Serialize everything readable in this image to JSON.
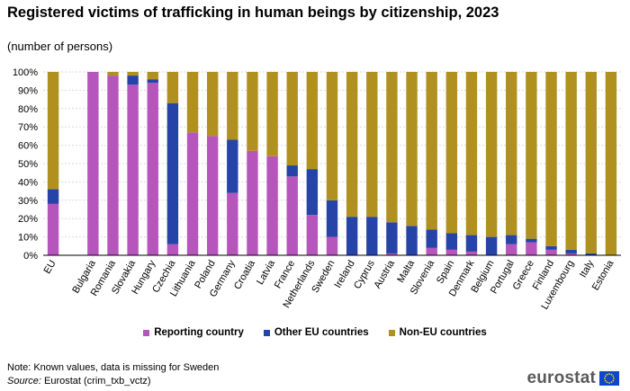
{
  "title": "Registered victims of trafficking in human beings by citizenship, 2023",
  "subtitle": "(number  of persons)",
  "note": "Note: Known values, data is missing for Sweden",
  "source_label": "Source:",
  "source_text": "Eurostat (crim_txb_vctz)",
  "logo_text": "eurostat",
  "colors": {
    "reporting": "#b656bd",
    "other_eu": "#2644a7",
    "non_eu": "#b09120",
    "grid": "#d9d9d9",
    "axis": "#000000"
  },
  "chart_data": {
    "type": "bar",
    "stacked": true,
    "title": "Registered victims of trafficking in human beings by citizenship, 2023",
    "xlabel": "",
    "ylabel": "",
    "ylim": [
      0,
      100
    ],
    "yticks": [
      "0%",
      "10%",
      "20%",
      "30%",
      "40%",
      "50%",
      "60%",
      "70%",
      "80%",
      "90%",
      "100%"
    ],
    "categories": [
      "EU",
      "",
      "Bulgaria",
      "Romania",
      "Slovakia",
      "Hungary",
      "Czechia",
      "Lithuania",
      "Poland",
      "Germany",
      "Croatia",
      "Latvia",
      "France",
      "Netherlands",
      "Sweden",
      "Ireland",
      "Cyprus",
      "Austria",
      "Malta",
      "Slovenia",
      "Spain",
      "Denmark",
      "Belgium",
      "Portugal",
      "Greece",
      "Finland",
      "Luxembourg",
      "Italy",
      "Estonia"
    ],
    "series": [
      {
        "name": "Reporting country",
        "key": "reporting",
        "values": [
          28,
          0,
          100,
          98,
          93,
          94,
          6,
          67,
          65,
          34,
          57,
          54,
          43,
          22,
          10,
          0,
          0,
          1,
          0,
          4,
          3,
          2,
          0,
          6,
          7,
          3,
          1,
          0,
          0
        ]
      },
      {
        "name": "Other EU countries",
        "key": "other_eu",
        "values": [
          8,
          0,
          0,
          0,
          5,
          2,
          77,
          0,
          0,
          29,
          0,
          0,
          6,
          25,
          20,
          21,
          21,
          17,
          16,
          10,
          9,
          9,
          10,
          5,
          2,
          2,
          2,
          1,
          0
        ]
      },
      {
        "name": "Non-EU countries",
        "key": "non_eu",
        "values": [
          64,
          0,
          0,
          2,
          2,
          4,
          17,
          33,
          35,
          37,
          43,
          46,
          51,
          53,
          70,
          79,
          79,
          82,
          84,
          86,
          88,
          89,
          90,
          89,
          91,
          95,
          97,
          99,
          100
        ]
      }
    ],
    "legend_position": "bottom",
    "grid": true
  }
}
